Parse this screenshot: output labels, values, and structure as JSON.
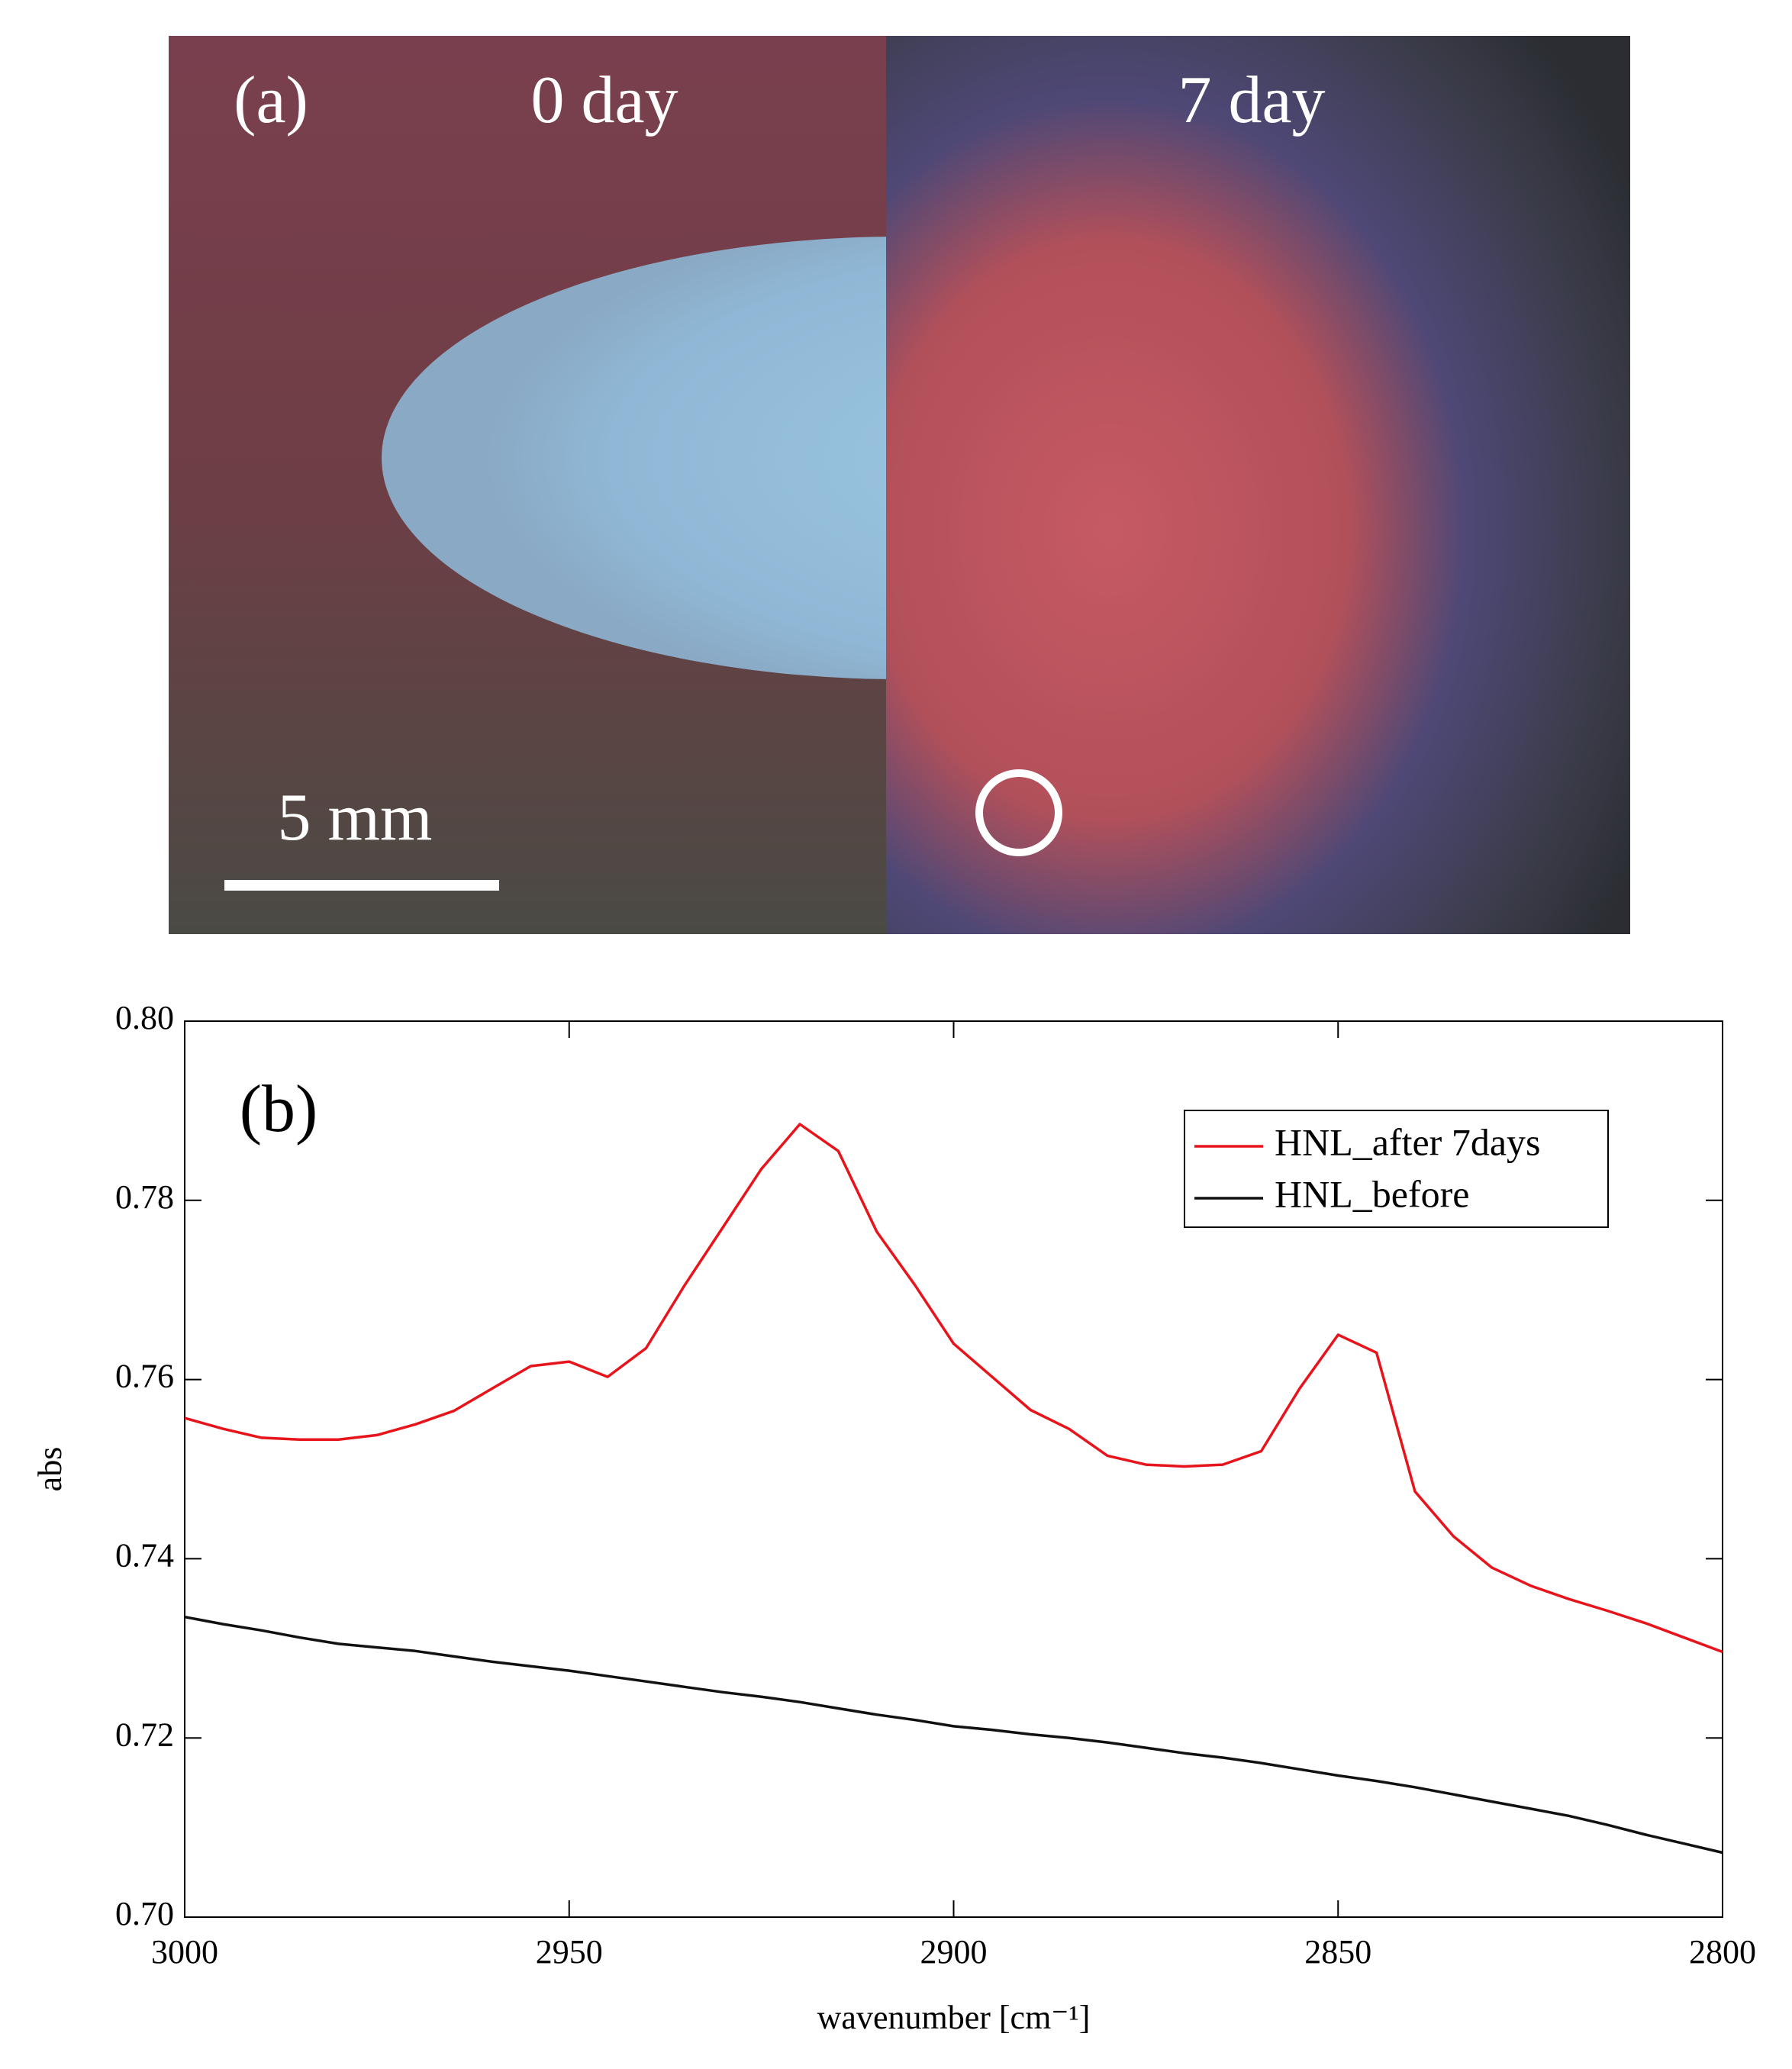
{
  "photo": {
    "panel_label": "(a)",
    "left_label": "0 day",
    "right_label": "7 day",
    "scale_bar": "5 mm"
  },
  "chart_data": {
    "type": "line",
    "annotation": "(b)",
    "xlabel": "wavenumber [cm⁻¹]",
    "ylabel": "abs",
    "x": [
      3000,
      2995,
      2990,
      2985,
      2980,
      2975,
      2970,
      2965,
      2960,
      2955,
      2950,
      2945,
      2940,
      2935,
      2930,
      2925,
      2920,
      2915,
      2910,
      2905,
      2900,
      2895,
      2890,
      2885,
      2880,
      2875,
      2870,
      2865,
      2860,
      2855,
      2850,
      2845,
      2840,
      2835,
      2830,
      2825,
      2820,
      2815,
      2810,
      2805,
      2800
    ],
    "series": [
      {
        "name": "HNL_after 7days",
        "color": "#e8141b",
        "values": [
          0.7557,
          0.7545,
          0.7535,
          0.7533,
          0.7533,
          0.7538,
          0.755,
          0.7565,
          0.759,
          0.7615,
          0.762,
          0.7603,
          0.7635,
          0.7705,
          0.777,
          0.7835,
          0.7885,
          0.7855,
          0.7765,
          0.7705,
          0.764,
          0.7603,
          0.7566,
          0.7545,
          0.7515,
          0.7505,
          0.7503,
          0.7505,
          0.752,
          0.759,
          0.765,
          0.763,
          0.7475,
          0.7425,
          0.739,
          0.737,
          0.7355,
          0.7342,
          0.7328,
          0.7312,
          0.7296
        ]
      },
      {
        "name": "HNL_before",
        "color": "#111111",
        "values": [
          0.7335,
          0.7327,
          0.732,
          0.7312,
          0.7305,
          0.7301,
          0.7297,
          0.7291,
          0.7285,
          0.728,
          0.7275,
          0.7269,
          0.7263,
          0.7257,
          0.7251,
          0.7246,
          0.724,
          0.7233,
          0.7226,
          0.722,
          0.7213,
          0.7209,
          0.7204,
          0.72,
          0.7195,
          0.7189,
          0.7183,
          0.7178,
          0.7172,
          0.7165,
          0.7158,
          0.7152,
          0.7145,
          0.7137,
          0.7129,
          0.7121,
          0.7113,
          0.7103,
          0.7092,
          0.7082,
          0.7072
        ]
      }
    ],
    "xlim": [
      3000,
      2800
    ],
    "xticks": [
      3000,
      2950,
      2900,
      2850,
      2800
    ],
    "ylim": [
      0.7,
      0.8
    ],
    "yticks": [
      {
        "value": 0.7,
        "label": "0.70"
      },
      0.72,
      0.74,
      0.76,
      0.78,
      {
        "value": 0.8,
        "label": "0.80"
      }
    ],
    "grid": false,
    "legend": "upper right"
  }
}
